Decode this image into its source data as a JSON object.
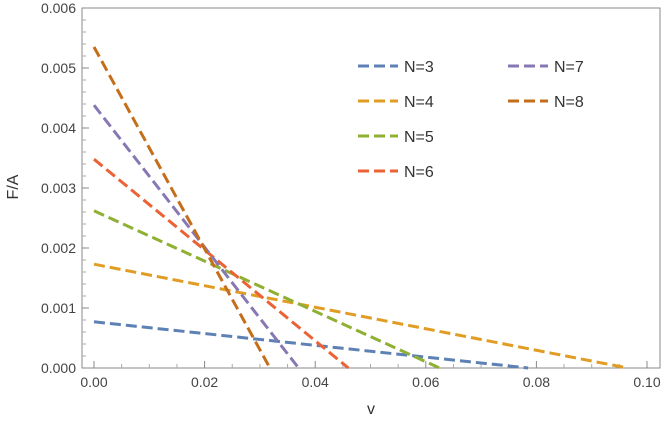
{
  "chart_data": {
    "type": "line",
    "title": "",
    "xlabel": "v",
    "ylabel": "F/A",
    "xlim": [
      0,
      0.1
    ],
    "ylim": [
      0,
      0.006
    ],
    "x_ticks": [
      "0.00",
      "0.02",
      "0.04",
      "0.06",
      "0.08",
      "0.10"
    ],
    "y_ticks": [
      "0.000",
      "0.001",
      "0.002",
      "0.003",
      "0.004",
      "0.005",
      "0.006"
    ],
    "grid": false,
    "legend_position": "top-right",
    "series": [
      {
        "name": "N=3",
        "color": "#5E81B5",
        "x": [
          0,
          0.0785
        ],
        "y": [
          0.00077,
          0
        ]
      },
      {
        "name": "N=4",
        "color": "#E19C24",
        "x": [
          0,
          0.0965
        ],
        "y": [
          0.00173,
          0
        ]
      },
      {
        "name": "N=5",
        "color": "#8FB032",
        "x": [
          0,
          0.0625
        ],
        "y": [
          0.00262,
          0
        ]
      },
      {
        "name": "N=6",
        "color": "#EB6235",
        "x": [
          0,
          0.046
        ],
        "y": [
          0.00348,
          0
        ]
      },
      {
        "name": "N=7",
        "color": "#8778B3",
        "x": [
          0,
          0.037
        ],
        "y": [
          0.00438,
          0
        ]
      },
      {
        "name": "N=8",
        "color": "#C56E1A",
        "x": [
          0,
          0.0318
        ],
        "y": [
          0.00535,
          0
        ]
      }
    ]
  }
}
